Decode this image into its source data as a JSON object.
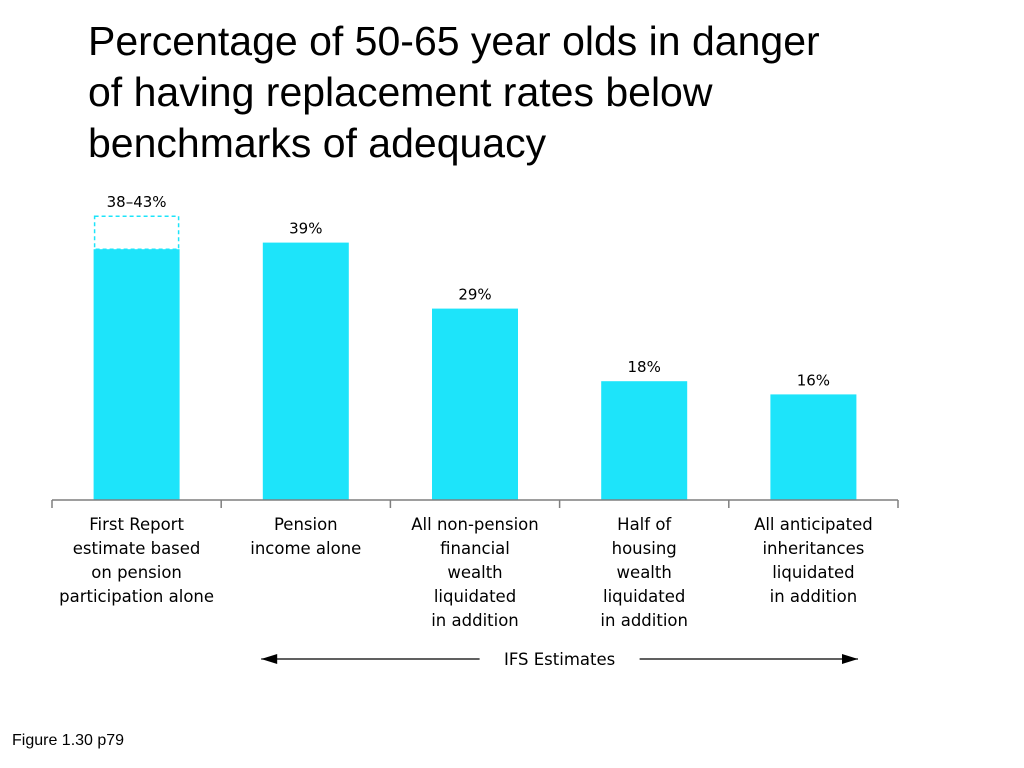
{
  "title_lines": [
    "Percentage of 50-65 year olds in danger",
    "of having replacement rates below",
    "benchmarks of adequacy"
  ],
  "chart_data": {
    "type": "bar",
    "categories": [
      [
        "First Report",
        "estimate based",
        "on pension",
        "participation alone"
      ],
      [
        "Pension",
        "income alone"
      ],
      [
        "All non-pension",
        "financial",
        "wealth",
        "liquidated",
        "in addition"
      ],
      [
        "Half of",
        "housing",
        "wealth",
        "liquidated",
        "in addition"
      ],
      [
        "All anticipated",
        "inheritances",
        "liquidated",
        "in addition"
      ]
    ],
    "values": [
      38,
      39,
      29,
      18,
      16
    ],
    "range_high": [
      43,
      null,
      null,
      null,
      null
    ],
    "data_labels": [
      "38–43%",
      "39%",
      "29%",
      "18%",
      "16%"
    ],
    "ylim": [
      0,
      50
    ],
    "grid": false,
    "bar_color": "#1de4fa",
    "range_style": "dashed outline",
    "bracket_label": "IFS Estimates",
    "bracket_covers": [
      1,
      4
    ]
  },
  "caption": "Figure 1.30 p79"
}
